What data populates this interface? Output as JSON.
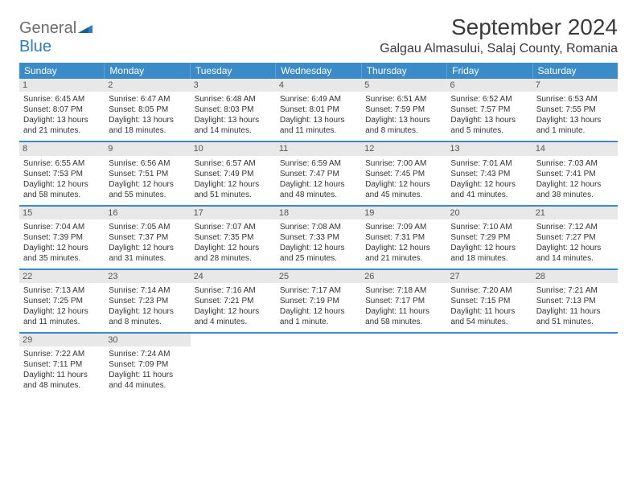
{
  "brand": {
    "part1": "General",
    "part2": "Blue"
  },
  "title": "September 2024",
  "location": "Galgau Almasului, Salaj County, Romania",
  "day_headers": [
    "Sunday",
    "Monday",
    "Tuesday",
    "Wednesday",
    "Thursday",
    "Friday",
    "Saturday"
  ],
  "colors": {
    "header_bg": "#3b8bc9",
    "header_text": "#ffffff",
    "daynum_bg": "#e8e8e8",
    "border": "#3b8bc9",
    "logo_gray": "#6b6b6b",
    "logo_blue": "#2f7bc0"
  },
  "weeks": [
    [
      {
        "n": "1",
        "sunrise": "Sunrise: 6:45 AM",
        "sunset": "Sunset: 8:07 PM",
        "daylight": "Daylight: 13 hours and 21 minutes."
      },
      {
        "n": "2",
        "sunrise": "Sunrise: 6:47 AM",
        "sunset": "Sunset: 8:05 PM",
        "daylight": "Daylight: 13 hours and 18 minutes."
      },
      {
        "n": "3",
        "sunrise": "Sunrise: 6:48 AM",
        "sunset": "Sunset: 8:03 PM",
        "daylight": "Daylight: 13 hours and 14 minutes."
      },
      {
        "n": "4",
        "sunrise": "Sunrise: 6:49 AM",
        "sunset": "Sunset: 8:01 PM",
        "daylight": "Daylight: 13 hours and 11 minutes."
      },
      {
        "n": "5",
        "sunrise": "Sunrise: 6:51 AM",
        "sunset": "Sunset: 7:59 PM",
        "daylight": "Daylight: 13 hours and 8 minutes."
      },
      {
        "n": "6",
        "sunrise": "Sunrise: 6:52 AM",
        "sunset": "Sunset: 7:57 PM",
        "daylight": "Daylight: 13 hours and 5 minutes."
      },
      {
        "n": "7",
        "sunrise": "Sunrise: 6:53 AM",
        "sunset": "Sunset: 7:55 PM",
        "daylight": "Daylight: 13 hours and 1 minute."
      }
    ],
    [
      {
        "n": "8",
        "sunrise": "Sunrise: 6:55 AM",
        "sunset": "Sunset: 7:53 PM",
        "daylight": "Daylight: 12 hours and 58 minutes."
      },
      {
        "n": "9",
        "sunrise": "Sunrise: 6:56 AM",
        "sunset": "Sunset: 7:51 PM",
        "daylight": "Daylight: 12 hours and 55 minutes."
      },
      {
        "n": "10",
        "sunrise": "Sunrise: 6:57 AM",
        "sunset": "Sunset: 7:49 PM",
        "daylight": "Daylight: 12 hours and 51 minutes."
      },
      {
        "n": "11",
        "sunrise": "Sunrise: 6:59 AM",
        "sunset": "Sunset: 7:47 PM",
        "daylight": "Daylight: 12 hours and 48 minutes."
      },
      {
        "n": "12",
        "sunrise": "Sunrise: 7:00 AM",
        "sunset": "Sunset: 7:45 PM",
        "daylight": "Daylight: 12 hours and 45 minutes."
      },
      {
        "n": "13",
        "sunrise": "Sunrise: 7:01 AM",
        "sunset": "Sunset: 7:43 PM",
        "daylight": "Daylight: 12 hours and 41 minutes."
      },
      {
        "n": "14",
        "sunrise": "Sunrise: 7:03 AM",
        "sunset": "Sunset: 7:41 PM",
        "daylight": "Daylight: 12 hours and 38 minutes."
      }
    ],
    [
      {
        "n": "15",
        "sunrise": "Sunrise: 7:04 AM",
        "sunset": "Sunset: 7:39 PM",
        "daylight": "Daylight: 12 hours and 35 minutes."
      },
      {
        "n": "16",
        "sunrise": "Sunrise: 7:05 AM",
        "sunset": "Sunset: 7:37 PM",
        "daylight": "Daylight: 12 hours and 31 minutes."
      },
      {
        "n": "17",
        "sunrise": "Sunrise: 7:07 AM",
        "sunset": "Sunset: 7:35 PM",
        "daylight": "Daylight: 12 hours and 28 minutes."
      },
      {
        "n": "18",
        "sunrise": "Sunrise: 7:08 AM",
        "sunset": "Sunset: 7:33 PM",
        "daylight": "Daylight: 12 hours and 25 minutes."
      },
      {
        "n": "19",
        "sunrise": "Sunrise: 7:09 AM",
        "sunset": "Sunset: 7:31 PM",
        "daylight": "Daylight: 12 hours and 21 minutes."
      },
      {
        "n": "20",
        "sunrise": "Sunrise: 7:10 AM",
        "sunset": "Sunset: 7:29 PM",
        "daylight": "Daylight: 12 hours and 18 minutes."
      },
      {
        "n": "21",
        "sunrise": "Sunrise: 7:12 AM",
        "sunset": "Sunset: 7:27 PM",
        "daylight": "Daylight: 12 hours and 14 minutes."
      }
    ],
    [
      {
        "n": "22",
        "sunrise": "Sunrise: 7:13 AM",
        "sunset": "Sunset: 7:25 PM",
        "daylight": "Daylight: 12 hours and 11 minutes."
      },
      {
        "n": "23",
        "sunrise": "Sunrise: 7:14 AM",
        "sunset": "Sunset: 7:23 PM",
        "daylight": "Daylight: 12 hours and 8 minutes."
      },
      {
        "n": "24",
        "sunrise": "Sunrise: 7:16 AM",
        "sunset": "Sunset: 7:21 PM",
        "daylight": "Daylight: 12 hours and 4 minutes."
      },
      {
        "n": "25",
        "sunrise": "Sunrise: 7:17 AM",
        "sunset": "Sunset: 7:19 PM",
        "daylight": "Daylight: 12 hours and 1 minute."
      },
      {
        "n": "26",
        "sunrise": "Sunrise: 7:18 AM",
        "sunset": "Sunset: 7:17 PM",
        "daylight": "Daylight: 11 hours and 58 minutes."
      },
      {
        "n": "27",
        "sunrise": "Sunrise: 7:20 AM",
        "sunset": "Sunset: 7:15 PM",
        "daylight": "Daylight: 11 hours and 54 minutes."
      },
      {
        "n": "28",
        "sunrise": "Sunrise: 7:21 AM",
        "sunset": "Sunset: 7:13 PM",
        "daylight": "Daylight: 11 hours and 51 minutes."
      }
    ],
    [
      {
        "n": "29",
        "sunrise": "Sunrise: 7:22 AM",
        "sunset": "Sunset: 7:11 PM",
        "daylight": "Daylight: 11 hours and 48 minutes."
      },
      {
        "n": "30",
        "sunrise": "Sunrise: 7:24 AM",
        "sunset": "Sunset: 7:09 PM",
        "daylight": "Daylight: 11 hours and 44 minutes."
      },
      null,
      null,
      null,
      null,
      null
    ]
  ]
}
